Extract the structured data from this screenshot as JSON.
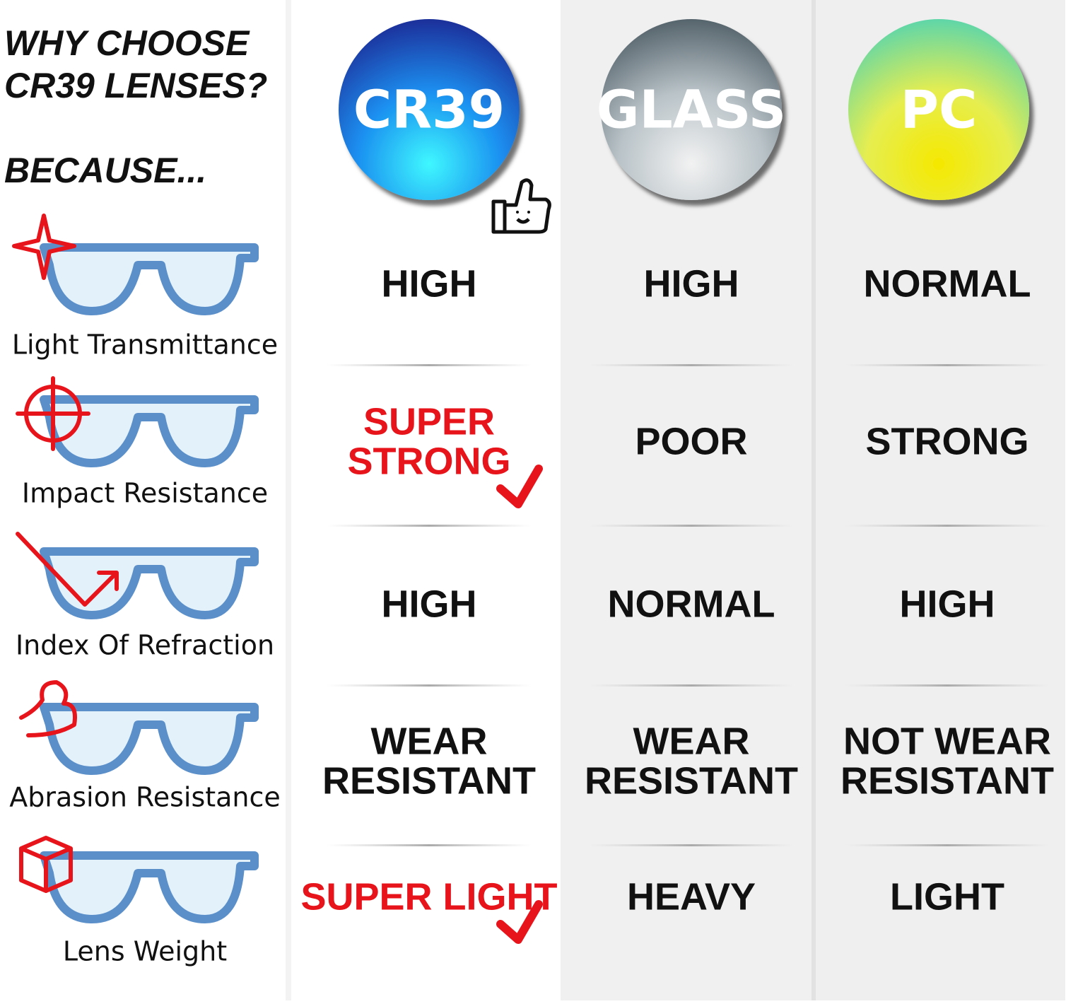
{
  "header": {
    "title": [
      "WHY CHOOSE",
      "CR39 LENSES?"
    ],
    "subtitle": "BECAUSE..."
  },
  "columns": [
    {
      "name": "CR39"
    },
    {
      "name": "GLASS"
    },
    {
      "name": "PC"
    }
  ],
  "rows": [
    {
      "label": "Light Transmittance",
      "cells": [
        {
          "lines": [
            "HIGH"
          ]
        },
        {
          "lines": [
            "HIGH"
          ]
        },
        {
          "lines": [
            "NORMAL"
          ]
        }
      ]
    },
    {
      "label": "Impact Resistance",
      "cells": [
        {
          "lines": [
            "SUPER",
            "STRONG"
          ],
          "highlight": true
        },
        {
          "lines": [
            "POOR"
          ]
        },
        {
          "lines": [
            "STRONG"
          ]
        }
      ]
    },
    {
      "label": "Index Of Refraction",
      "cells": [
        {
          "lines": [
            "HIGH"
          ]
        },
        {
          "lines": [
            "NORMAL"
          ]
        },
        {
          "lines": [
            "HIGH"
          ]
        }
      ]
    },
    {
      "label": "Abrasion Resistance",
      "cells": [
        {
          "lines": [
            "WEAR",
            "RESISTANT"
          ]
        },
        {
          "lines": [
            "WEAR",
            "RESISTANT"
          ]
        },
        {
          "lines": [
            "NOT WEAR",
            "RESISTANT"
          ]
        }
      ]
    },
    {
      "label": "Lens Weight",
      "cells": [
        {
          "lines": [
            "SUPER LIGHT"
          ],
          "highlight": true
        },
        {
          "lines": [
            "HEAVY"
          ]
        },
        {
          "lines": [
            "LIGHT"
          ]
        }
      ]
    }
  ]
}
